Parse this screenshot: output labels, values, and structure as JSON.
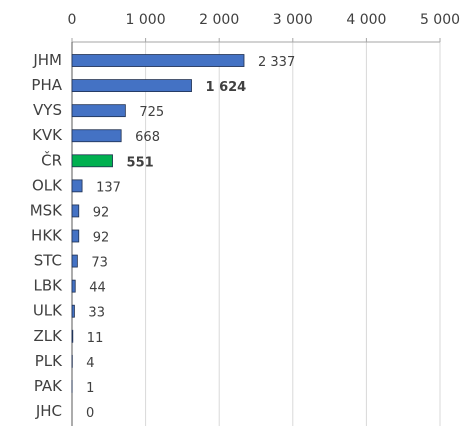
{
  "chart_data": {
    "type": "hbar",
    "categories": [
      "JHM",
      "PHA",
      "VYS",
      "KVK",
      "ČR",
      "OLK",
      "MSK",
      "HKK",
      "STC",
      "LBK",
      "ULK",
      "ZLK",
      "PLK",
      "PAK",
      "JHC"
    ],
    "values": [
      2337,
      1624,
      725,
      668,
      551,
      137,
      92,
      92,
      73,
      44,
      33,
      11,
      4,
      1,
      0
    ],
    "value_labels": [
      "2 337",
      "1 624",
      "725",
      "668",
      "551",
      "137",
      "92",
      "92",
      "73",
      "44",
      "33",
      "11",
      "4",
      "1",
      "0"
    ],
    "colors": [
      "#4472c4",
      "#4472c4",
      "#4472c4",
      "#4472c4",
      "#00b050",
      "#4472c4",
      "#4472c4",
      "#4472c4",
      "#4472c4",
      "#4472c4",
      "#4472c4",
      "#4472c4",
      "#4472c4",
      "#4472c4",
      "#4472c4"
    ],
    "bold_labels": [
      "PHA",
      "ČR"
    ],
    "xlim": [
      0,
      5000
    ],
    "xticks": [
      0,
      {
        "value": 1000,
        "label": "1 000"
      },
      {
        "value": 2000,
        "label": "2 000"
      },
      {
        "value": 3000,
        "label": "3 000"
      },
      {
        "value": 4000,
        "label": "4 000"
      },
      {
        "value": 5000,
        "label": "5 000"
      }
    ],
    "grid": true
  }
}
